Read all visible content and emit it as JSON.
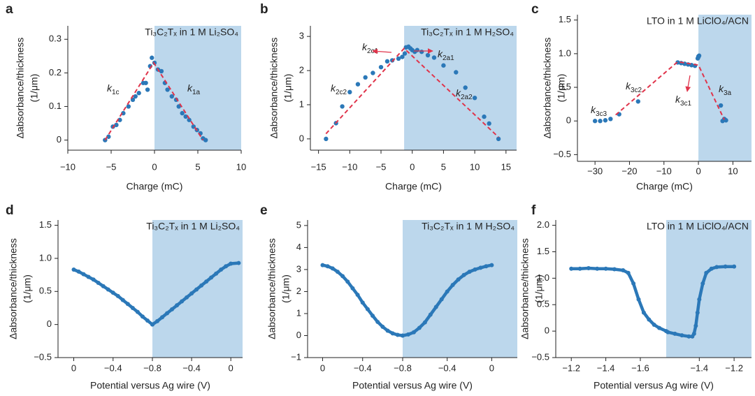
{
  "chart_data": [
    {
      "type": "scatter",
      "label": "a",
      "title": "Ti₃C₂Tₓ in 1 M Li₂SO₄",
      "xlabel": "Charge (mC)",
      "ylabel": [
        "Δabsorbance/thickness",
        "(1/μm)"
      ],
      "xlim": [
        -10,
        10
      ],
      "ylim": [
        -0.03,
        0.34
      ],
      "xticks": [
        {
          "value": -10,
          "label": "−10"
        },
        {
          "value": -5,
          "label": "−5"
        },
        0,
        5,
        10
      ],
      "yticks": [
        0,
        0.1,
        0.2,
        0.3
      ],
      "color": "#2b78b8",
      "fit_color": "#e0344b",
      "shade_color": "#bcd7ec",
      "shaded": [
        0,
        10
      ],
      "x": [
        -5.7,
        -5.3,
        -4.8,
        -4.4,
        -4.0,
        -3.6,
        -3.0,
        -2.5,
        -2.2,
        -1.8,
        -1.3,
        -1.0,
        -0.8,
        -0.5,
        -0.3,
        0,
        0.4,
        0.8,
        1.2,
        1.5,
        2.0,
        2.5,
        2.8,
        3.2,
        3.6,
        4.0,
        4.5,
        4.9,
        5.3,
        5.6,
        5.9
      ],
      "y": [
        0.0,
        0.01,
        0.04,
        0.045,
        0.06,
        0.08,
        0.1,
        0.12,
        0.13,
        0.14,
        0.17,
        0.17,
        0.15,
        0.22,
        0.245,
        0.23,
        0.21,
        0.205,
        0.17,
        0.15,
        0.13,
        0.12,
        0.1,
        0.08,
        0.07,
        0.06,
        0.04,
        0.03,
        0.02,
        0.005,
        0.0
      ],
      "fits": [
        {
          "x": [
            -5.7,
            -0.1,
            5.6
          ],
          "y": [
            0.0,
            0.23,
            0.0
          ]
        }
      ],
      "annotations": [
        {
          "base": "k",
          "sub": "1c"
        },
        {
          "base": "k",
          "sub": "1a"
        }
      ]
    },
    {
      "type": "scatter",
      "label": "b",
      "title": "Ti₃C₂Tₓ in 1 M H₂SO₄",
      "xlabel": "Charge (mC)",
      "ylabel": [
        "Δabsorbance/thickness",
        "(1/μm)"
      ],
      "xlim": [
        -16.3,
        16.7
      ],
      "ylim": [
        -0.33,
        3.31
      ],
      "xticks": [
        {
          "value": -15,
          "label": "−15"
        },
        {
          "value": -10,
          "label": "−10"
        },
        {
          "value": -5,
          "label": "−5"
        },
        0,
        5,
        10,
        15
      ],
      "yticks": [
        0,
        1,
        2,
        3
      ],
      "color": "#2b78b8",
      "fit_color": "#e0344b",
      "shade_color": "#bcd7ec",
      "shaded": [
        -1.3,
        16.7
      ],
      "x": [
        -13.8,
        -12.2,
        -11.2,
        -10,
        -8.7,
        -7.5,
        -6.3,
        -5,
        -4,
        -3.2,
        -2.2,
        -1.6,
        -1.2,
        -1,
        -0.6,
        -0.3,
        0,
        0.4,
        0.8,
        1.5,
        2.5,
        3.5,
        5,
        7,
        8.5,
        10,
        11.5,
        12.3,
        13.8
      ],
      "y": [
        0,
        0.46,
        0.95,
        1.37,
        1.6,
        1.8,
        1.93,
        2.1,
        2.27,
        2.3,
        2.35,
        2.4,
        2.5,
        2.68,
        2.7,
        2.65,
        2.6,
        2.55,
        2.6,
        2.55,
        2.45,
        2.38,
        2.15,
        1.95,
        1.5,
        1.2,
        0.65,
        0.45,
        0
      ],
      "fits": [
        {
          "x": [
            -13.8,
            -1.3,
            13.8
          ],
          "y": [
            0.15,
            2.65,
            0.05
          ]
        }
      ],
      "annotations": [
        {
          "base": "k",
          "sub": "2c1"
        },
        {
          "base": "k",
          "sub": "2a1"
        },
        {
          "base": "k",
          "sub": "2c2"
        },
        {
          "base": "k",
          "sub": "2a2"
        }
      ]
    },
    {
      "type": "scatter",
      "label": "c",
      "title": "LTO in 1 M LiClO₄/ACN",
      "xlabel": "Charge (mC)",
      "ylabel": [
        "Δabsorbance/thickness",
        "(1/μm)"
      ],
      "xlim": [
        -35.1,
        15.4
      ],
      "ylim": [
        -0.6,
        1.58
      ],
      "xticks": [
        {
          "value": -30,
          "label": "−30"
        },
        {
          "value": -20,
          "label": "−20"
        },
        {
          "value": -10,
          "label": "−10"
        },
        0,
        10
      ],
      "yticks": [
        {
          "value": -0.5,
          "label": "−0.5"
        },
        0,
        0.5,
        {
          "value": 1,
          "label": "1.0"
        },
        1.5
      ],
      "color": "#2b78b8",
      "fit_color": "#e0344b",
      "shade_color": "#bcd7ec",
      "shaded": [
        0,
        15.4
      ],
      "x": [
        -30,
        -28.5,
        -27,
        -25.5,
        -23,
        -17.5,
        -6,
        -5,
        -4,
        -3,
        -2,
        -1,
        -0.2,
        0,
        0.2,
        0,
        6.5,
        7.5,
        8,
        7
      ],
      "y": [
        0.0,
        0.0,
        0.01,
        0.03,
        0.1,
        0.29,
        0.87,
        0.86,
        0.85,
        0.84,
        0.83,
        0.82,
        0.93,
        0.96,
        0.97,
        0.95,
        0.23,
        0.03,
        0.01,
        0.0
      ],
      "fits": [
        {
          "x": [
            -24,
            -6,
            0,
            7.5
          ],
          "y": [
            0.09,
            0.88,
            0.83,
            0.02
          ]
        }
      ],
      "annotations": [
        {
          "base": "k",
          "sub": "3c3"
        },
        {
          "base": "k",
          "sub": "3c2"
        },
        {
          "base": "k",
          "sub": "3c1"
        },
        {
          "base": "k",
          "sub": "3a"
        }
      ]
    },
    {
      "type": "sweep",
      "label": "d",
      "title": "Ti₃C₂Tₓ in 1 M Li₂SO₄",
      "xlabel": "Potential versus Ag wire (V)",
      "ylabel": [
        "Δabsorbance/thickness",
        "(1/μm)"
      ],
      "ylim": [
        -0.5,
        1.58
      ],
      "yticks": [
        {
          "value": -0.5,
          "label": "−0.5"
        },
        0,
        0.5,
        {
          "value": 1,
          "label": "1.0"
        },
        1.5
      ],
      "color": "#2b78b8",
      "shade_color": "#bcd7ec",
      "shaded_branch": 1,
      "branches": [
        {
          "xlim": [
            0.16,
            -0.8
          ],
          "xticks": [
            0,
            {
              "value": -0.4,
              "label": "−0.4"
            },
            {
              "value": -0.8,
              "label": "−0.8"
            }
          ],
          "x": [
            0,
            -0.05,
            -0.1,
            -0.15,
            -0.2,
            -0.25,
            -0.3,
            -0.35,
            -0.4,
            -0.45,
            -0.5,
            -0.55,
            -0.6,
            -0.65,
            -0.7,
            -0.75,
            -0.8
          ],
          "y": [
            0.83,
            0.8,
            0.76,
            0.72,
            0.68,
            0.63,
            0.58,
            0.53,
            0.48,
            0.43,
            0.37,
            0.31,
            0.25,
            0.19,
            0.12,
            0.06,
            0.0
          ]
        },
        {
          "xlim": [
            -0.8,
            0.12
          ],
          "xticks": [
            {
              "value": -0.4,
              "label": "−0.4"
            },
            0
          ],
          "x": [
            -0.8,
            -0.75,
            -0.7,
            -0.65,
            -0.6,
            -0.55,
            -0.5,
            -0.45,
            -0.4,
            -0.35,
            -0.3,
            -0.25,
            -0.2,
            -0.15,
            -0.1,
            -0.05,
            0,
            0.08
          ],
          "y": [
            0.0,
            0.05,
            0.11,
            0.17,
            0.23,
            0.29,
            0.35,
            0.41,
            0.47,
            0.53,
            0.59,
            0.65,
            0.71,
            0.77,
            0.83,
            0.88,
            0.92,
            0.93
          ]
        }
      ]
    },
    {
      "type": "sweep",
      "label": "e",
      "title": "Ti₃C₂Tₓ in 1 M H₂SO₄",
      "xlabel": "Potential versus Ag wire (V)",
      "ylabel": [
        "Δabsorbance/thickness",
        "(1/μm)"
      ],
      "ylim": [
        -1,
        5.25
      ],
      "yticks": [
        {
          "value": -1,
          "label": "−1"
        },
        0,
        1,
        2,
        3,
        4,
        5
      ],
      "color": "#2b78b8",
      "shade_color": "#bcd7ec",
      "shaded_branch": 1,
      "branches": [
        {
          "xlim": [
            0.15,
            -0.8
          ],
          "xticks": [
            0,
            {
              "value": -0.4,
              "label": "−0.4"
            },
            {
              "value": -0.8,
              "label": "−0.8"
            }
          ],
          "x": [
            0,
            -0.05,
            -0.1,
            -0.15,
            -0.2,
            -0.25,
            -0.3,
            -0.35,
            -0.4,
            -0.45,
            -0.5,
            -0.55,
            -0.6,
            -0.65,
            -0.7,
            -0.75,
            -0.8
          ],
          "y": [
            3.2,
            3.15,
            3.05,
            2.9,
            2.7,
            2.45,
            2.15,
            1.85,
            1.5,
            1.2,
            0.9,
            0.62,
            0.4,
            0.22,
            0.1,
            0.03,
            0.0
          ]
        },
        {
          "xlim": [
            -0.8,
            0.23
          ],
          "xticks": [
            {
              "value": -0.4,
              "label": "−0.4"
            },
            0
          ],
          "x": [
            -0.8,
            -0.75,
            -0.7,
            -0.65,
            -0.6,
            -0.55,
            -0.5,
            -0.45,
            -0.4,
            -0.35,
            -0.3,
            -0.25,
            -0.2,
            -0.15,
            -0.1,
            -0.05,
            0
          ],
          "y": [
            0.0,
            0.05,
            0.15,
            0.35,
            0.6,
            0.95,
            1.3,
            1.65,
            2.0,
            2.3,
            2.55,
            2.75,
            2.9,
            3.0,
            3.08,
            3.15,
            3.2
          ]
        }
      ]
    },
    {
      "type": "sweep",
      "label": "f",
      "title": "LTO in 1 M LiClO₄/ACN",
      "xlabel": "Potential versus Ag wire (V)",
      "ylabel": [
        "Δabsorbance/thickness",
        "(1/μm)"
      ],
      "ylim": [
        -0.5,
        2.1
      ],
      "yticks": [
        {
          "value": -0.5,
          "label": "−0.5"
        },
        0,
        0.5,
        {
          "value": 1,
          "label": "1.0"
        },
        1.5,
        {
          "value": 2,
          "label": "2.0"
        }
      ],
      "color": "#2b78b8",
      "shade_color": "#bcd7ec",
      "shaded_branch": 1,
      "branches": [
        {
          "xlim": [
            -1.11,
            -1.75
          ],
          "xticks": [
            {
              "value": -1.2,
              "label": "−1.2"
            },
            {
              "value": -1.4,
              "label": "−1.4"
            },
            {
              "value": -1.6,
              "label": "−1.6"
            }
          ],
          "x": [
            -1.2,
            -1.25,
            -1.3,
            -1.35,
            -1.4,
            -1.45,
            -1.5,
            -1.53,
            -1.56,
            -1.59,
            -1.62,
            -1.65,
            -1.68,
            -1.71,
            -1.75
          ],
          "y": [
            1.18,
            1.18,
            1.19,
            1.18,
            1.18,
            1.17,
            1.15,
            1.1,
            0.9,
            0.6,
            0.35,
            0.22,
            0.12,
            0.06,
            0.0
          ]
        },
        {
          "xlim": [
            -1.59,
            -1.1
          ],
          "xticks": [
            {
              "value": -1.4,
              "label": "−1.4"
            },
            {
              "value": -1.2,
              "label": "−1.2"
            }
          ],
          "x": [
            -1.58,
            -1.54,
            -1.5,
            -1.46,
            -1.44,
            -1.43,
            -1.42,
            -1.41,
            -1.4,
            -1.38,
            -1.36,
            -1.33,
            -1.3,
            -1.25,
            -1.2
          ],
          "y": [
            -0.02,
            -0.05,
            -0.08,
            -0.1,
            -0.1,
            -0.05,
            0.1,
            0.35,
            0.6,
            0.9,
            1.1,
            1.18,
            1.21,
            1.22,
            1.22
          ]
        }
      ]
    }
  ]
}
